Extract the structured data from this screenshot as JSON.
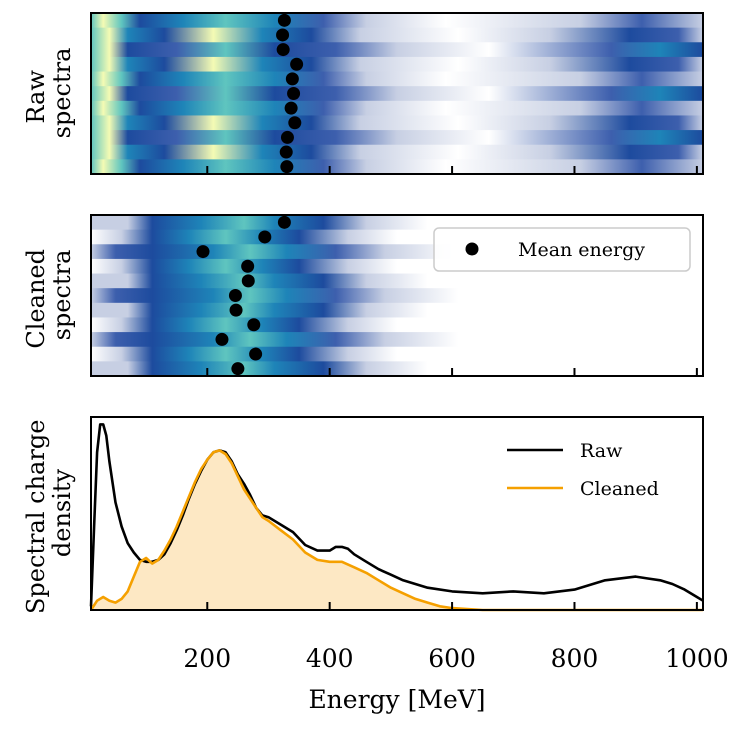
{
  "figure": {
    "panels": {
      "raw": {
        "ylabel_lines": [
          "Raw",
          "spectra"
        ]
      },
      "cleaned": {
        "ylabel_lines": [
          "Cleaned",
          "spectra"
        ]
      },
      "density": {
        "ylabel_lines": [
          "Spectral charge",
          "density"
        ]
      }
    },
    "xlabel": "Energy [MeV]",
    "xticks": [
      "200",
      "400",
      "600",
      "800",
      "1000"
    ],
    "legend_mean": "Mean energy",
    "legend_raw": "Raw",
    "legend_cleaned": "Cleaned",
    "colors": {
      "raw_line": "#000000",
      "cleaned_line": "#f5a000",
      "cleaned_fill": "#fde8c4",
      "colormap": [
        "#ffffff",
        "#c7cfe3",
        "#3d5fad",
        "#1d4b9e",
        "#1e84b8",
        "#5fc5bf",
        "#f4fbb4"
      ]
    }
  },
  "chart_data": [
    {
      "type": "heatmap",
      "panel": "Raw spectra",
      "xlim": [
        10,
        1010
      ],
      "n_rows": 11,
      "mean_energy_mev": [
        326,
        323,
        324,
        346,
        339,
        341,
        337,
        343,
        331,
        329,
        330
      ]
    },
    {
      "type": "heatmap",
      "panel": "Cleaned spectra",
      "xlim": [
        10,
        1010
      ],
      "n_rows": 11,
      "mean_energy_mev": [
        326,
        294,
        193,
        266,
        267,
        246,
        247,
        276,
        224,
        279,
        250
      ],
      "legend": "Mean energy",
      "legend_position": "upper right"
    },
    {
      "type": "line",
      "panel": "Spectral charge density",
      "xlim": [
        10,
        1010
      ],
      "xlabel": "Energy [MeV]",
      "ylabel": "Spectral charge density",
      "legend_position": "upper right",
      "series": [
        {
          "name": "Raw",
          "x": [
            10,
            15,
            20,
            25,
            30,
            35,
            40,
            50,
            60,
            70,
            80,
            90,
            100,
            110,
            120,
            130,
            140,
            150,
            160,
            170,
            180,
            190,
            200,
            210,
            220,
            230,
            240,
            250,
            260,
            270,
            280,
            290,
            300,
            320,
            340,
            360,
            380,
            400,
            410,
            420,
            430,
            440,
            460,
            480,
            500,
            520,
            560,
            600,
            650,
            700,
            750,
            800,
            850,
            900,
            920,
            940,
            960,
            980,
            1000,
            1010
          ],
          "y": [
            0.02,
            0.45,
            0.85,
            1.0,
            1.0,
            0.94,
            0.8,
            0.58,
            0.45,
            0.36,
            0.31,
            0.27,
            0.26,
            0.26,
            0.27,
            0.3,
            0.36,
            0.43,
            0.51,
            0.6,
            0.68,
            0.75,
            0.81,
            0.85,
            0.86,
            0.85,
            0.8,
            0.73,
            0.68,
            0.62,
            0.55,
            0.51,
            0.5,
            0.46,
            0.42,
            0.35,
            0.32,
            0.32,
            0.34,
            0.34,
            0.33,
            0.3,
            0.26,
            0.22,
            0.19,
            0.16,
            0.12,
            0.1,
            0.09,
            0.1,
            0.09,
            0.11,
            0.16,
            0.18,
            0.17,
            0.16,
            0.14,
            0.11,
            0.07,
            0.05
          ]
        },
        {
          "name": "Cleaned",
          "x": [
            10,
            20,
            30,
            40,
            50,
            60,
            70,
            80,
            90,
            100,
            110,
            120,
            130,
            140,
            150,
            160,
            170,
            180,
            190,
            200,
            210,
            220,
            230,
            240,
            250,
            260,
            270,
            280,
            290,
            300,
            320,
            340,
            360,
            380,
            400,
            420,
            440,
            460,
            480,
            500,
            520,
            540,
            560,
            580,
            600,
            650,
            700,
            750,
            800,
            900,
            1000,
            1010
          ],
          "y": [
            0.0,
            0.05,
            0.07,
            0.05,
            0.04,
            0.06,
            0.1,
            0.18,
            0.26,
            0.28,
            0.25,
            0.27,
            0.32,
            0.38,
            0.45,
            0.53,
            0.61,
            0.69,
            0.76,
            0.81,
            0.85,
            0.86,
            0.84,
            0.79,
            0.72,
            0.65,
            0.6,
            0.55,
            0.5,
            0.48,
            0.43,
            0.38,
            0.31,
            0.27,
            0.26,
            0.26,
            0.23,
            0.2,
            0.16,
            0.12,
            0.09,
            0.06,
            0.04,
            0.02,
            0.01,
            0.0,
            0.0,
            0.0,
            0.0,
            0.0,
            0.0,
            0.0
          ]
        }
      ]
    }
  ]
}
